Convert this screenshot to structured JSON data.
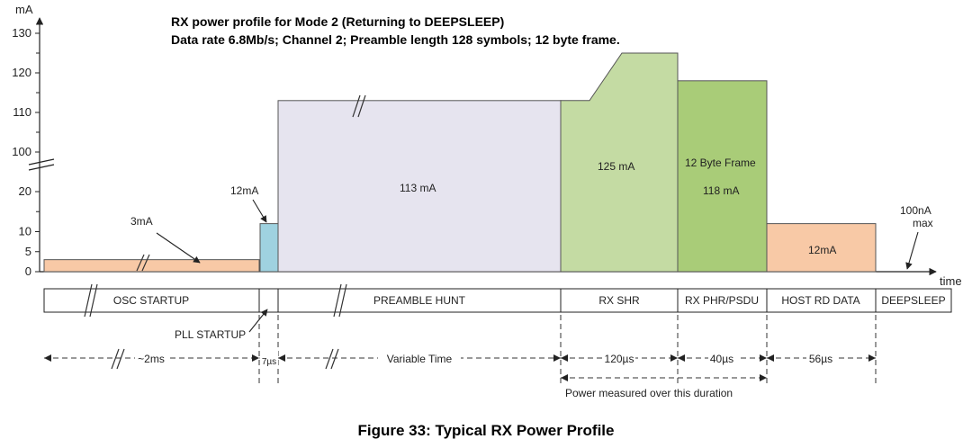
{
  "chart_data": {
    "type": "bar",
    "title": "RX power profile for Mode 2 (Returning to DEEPSLEEP)",
    "subtitle": "Data rate 6.8Mb/s; Channel 2; Preamble length 128 symbols; 12 byte frame.",
    "ylabel": "mA",
    "xlabel": "time",
    "ylim": [
      0,
      130
    ],
    "y_ticks": [
      "0",
      "5",
      "10",
      "20",
      "100",
      "110",
      "120",
      "130"
    ],
    "phases": [
      {
        "label": "OSC  STARTUP",
        "current_mA": 3,
        "value_label": "3mA",
        "duration": "~2ms",
        "color": "#f8c9a6"
      },
      {
        "label": "PLL STARTUP",
        "current_mA": 12,
        "value_label": "12mA",
        "duration": "7µs",
        "color": "#9fd2e0"
      },
      {
        "label": "PREAMBLE HUNT",
        "current_mA": 113,
        "value_label": "113 mA",
        "duration": "Variable Time",
        "color": "#e6e4ef"
      },
      {
        "label": "RX SHR",
        "current_mA": 125,
        "value_label": "125 mA",
        "duration": "120µs",
        "color": "#c4dba3"
      },
      {
        "label": "RX PHR/PSDU",
        "current_mA": 118,
        "value_label": "118 mA",
        "value_label_top": "12 Byte Frame",
        "duration": "40µs",
        "color": "#a9cc78"
      },
      {
        "label": "HOST RD DATA",
        "current_mA": 12,
        "value_label": "12mA",
        "duration": "56µs",
        "color": "#f8c9a6"
      },
      {
        "label": "DEEPSLEEP",
        "current_mA": 0.0001,
        "value_label": "100nA\nmax",
        "duration": "",
        "color": "#ffffff"
      }
    ],
    "annotation": "Power measured over this duration",
    "grid": false,
    "legend": "none"
  },
  "caption": "Figure 33: Typical RX Power Profile"
}
